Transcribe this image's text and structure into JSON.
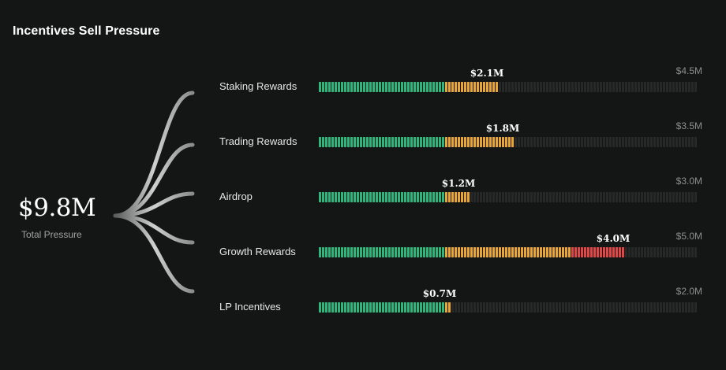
{
  "title": "Incentives Sell Pressure",
  "total": {
    "value": "$9.8M",
    "label": "Total Pressure"
  },
  "colors": {
    "background": "#141615",
    "green": "#2fb67c",
    "orange": "#e8a637",
    "red": "#e04848",
    "empty": "#262928",
    "connector": "#bdbdbd"
  },
  "chart_data": {
    "type": "bar",
    "title": "Incentives Sell Pressure",
    "categories": [
      "Staking Rewards",
      "Trading Rewards",
      "Airdrop",
      "Growth Rewards",
      "LP Incentives"
    ],
    "values": [
      2.1,
      1.8,
      1.2,
      4.0,
      0.7
    ],
    "value_labels": [
      "$2.1M",
      "$1.8M",
      "$1.2M",
      "$4.0M",
      "$0.7M"
    ],
    "caps": [
      4.5,
      3.5,
      3.0,
      5.0,
      2.0
    ],
    "cap_labels": [
      "$4.5M",
      "$3.5M",
      "$3.0M",
      "$5.0M",
      "$2.0M"
    ],
    "green_segments": 40,
    "orange_segments": [
      17,
      22,
      8,
      40,
      2
    ],
    "red_segments": [
      0,
      0,
      0,
      17,
      0
    ],
    "total_segments": 120,
    "unit": "$M"
  }
}
